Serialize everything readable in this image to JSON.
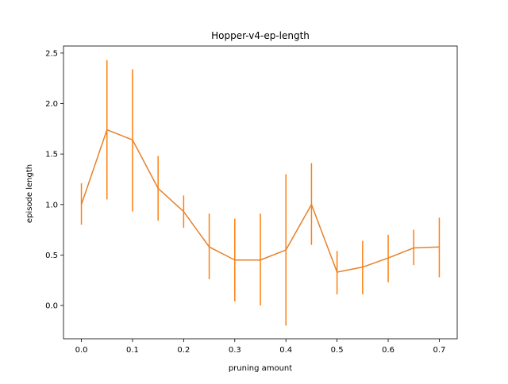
{
  "chart_data": {
    "type": "line",
    "title": "Hopper-v4-ep-length",
    "xlabel": "pruning amount",
    "ylabel": "episode length",
    "xlim": [
      -0.035,
      0.735
    ],
    "ylim": [
      -0.33,
      2.57
    ],
    "xticks": [
      0.0,
      0.1,
      0.2,
      0.3,
      0.4,
      0.5,
      0.6,
      0.7
    ],
    "xtick_labels": [
      "0.0",
      "0.1",
      "0.2",
      "0.3",
      "0.4",
      "0.5",
      "0.6",
      "0.7"
    ],
    "yticks": [
      0.0,
      0.5,
      1.0,
      1.5,
      2.0,
      2.5
    ],
    "ytick_labels": [
      "0.0",
      "0.5",
      "1.0",
      "1.5",
      "2.0",
      "2.5"
    ],
    "grid": false,
    "series": [
      {
        "color": "#ff7f0e",
        "line_color": "#e5812b",
        "x": [
          0.0,
          0.05,
          0.1,
          0.15,
          0.2,
          0.25,
          0.3,
          0.35,
          0.4,
          0.45,
          0.5,
          0.55,
          0.6,
          0.65,
          0.7
        ],
        "y": [
          1.0,
          1.74,
          1.64,
          1.16,
          0.93,
          0.58,
          0.45,
          0.45,
          0.55,
          1.0,
          0.33,
          0.38,
          0.47,
          0.57,
          0.58
        ],
        "yerr_low": [
          0.8,
          1.05,
          0.93,
          0.84,
          0.77,
          0.26,
          0.04,
          0.0,
          -0.2,
          0.6,
          0.11,
          0.11,
          0.23,
          0.4,
          0.28
        ],
        "yerr_high": [
          1.21,
          2.43,
          2.34,
          1.48,
          1.09,
          0.91,
          0.86,
          0.91,
          1.3,
          1.41,
          0.54,
          0.64,
          0.7,
          0.75,
          0.87
        ]
      }
    ]
  }
}
